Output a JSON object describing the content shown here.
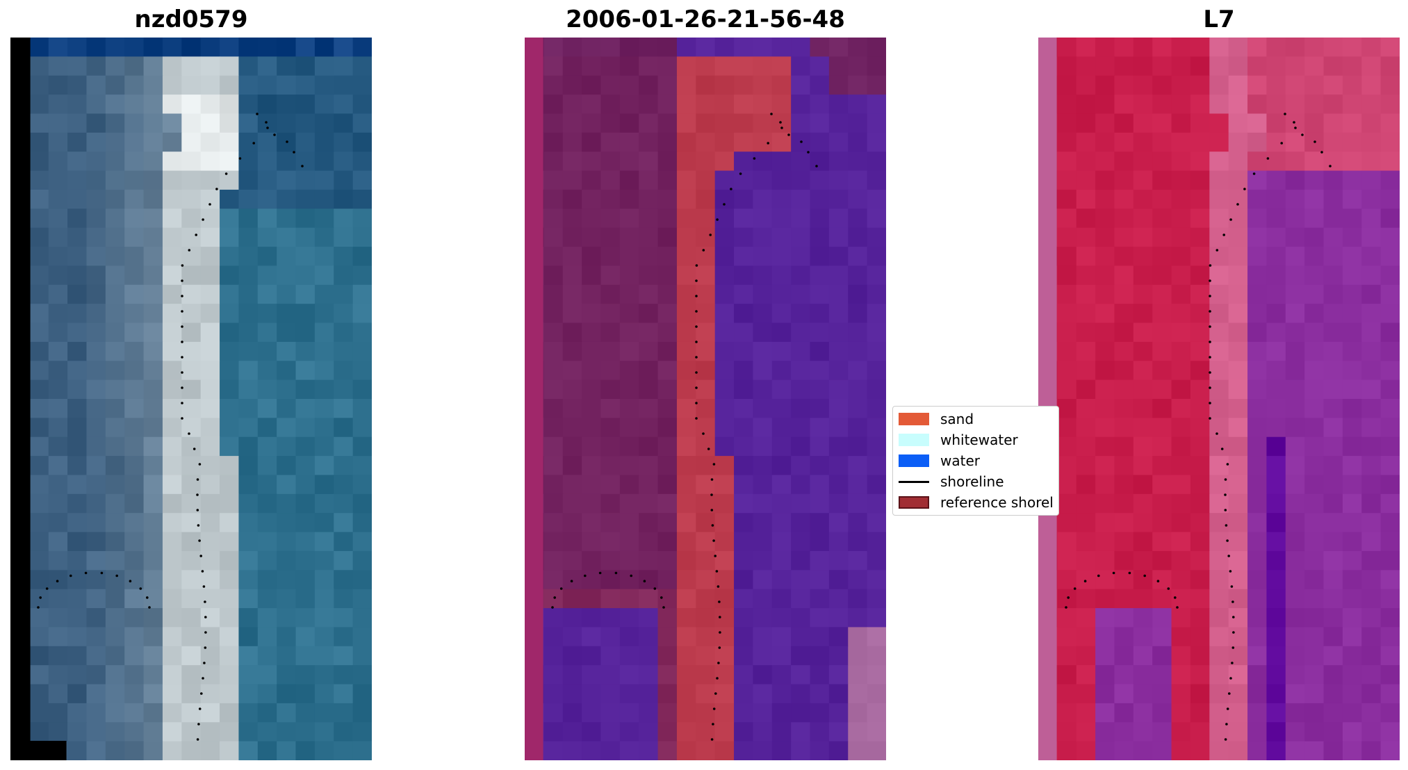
{
  "panels": [
    {
      "id": "rgb",
      "title": "nzd0579"
    },
    {
      "id": "classified",
      "title": "2006-01-26-21-56-48"
    },
    {
      "id": "mndwi",
      "title": "L7"
    }
  ],
  "legend": {
    "items": [
      {
        "label": "sand",
        "color": "#e35a37",
        "kind": "patch"
      },
      {
        "label": "whitewater",
        "color": "#c8fdfd",
        "kind": "patch"
      },
      {
        "label": "water",
        "color": "#0b5ef6",
        "kind": "patch"
      },
      {
        "label": "shoreline",
        "color": "#000000",
        "kind": "line"
      },
      {
        "label": "reference shorel",
        "color": "#a12e34",
        "kind": "patch-outline"
      }
    ]
  },
  "colors": {
    "rgb_land": "#3c5f80",
    "rgb_sand": "#b7c2c6",
    "rgb_ocean": "#2f7390",
    "rgb_top_strip": "#0d3f80",
    "rgb_nodata": "#000000",
    "class_land": "#6e2160",
    "class_sand": "#bc3b4d",
    "class_water": "#55229a",
    "class_white": "#a86aa0",
    "class_border": "#a0276a",
    "l7_land": "#c81d4b",
    "l7_sand": "#d4608d",
    "l7_water": "#8a2d9e",
    "l7_deep": "#5f089c",
    "l7_border": "#be5f97",
    "shoreline": "#000000"
  }
}
